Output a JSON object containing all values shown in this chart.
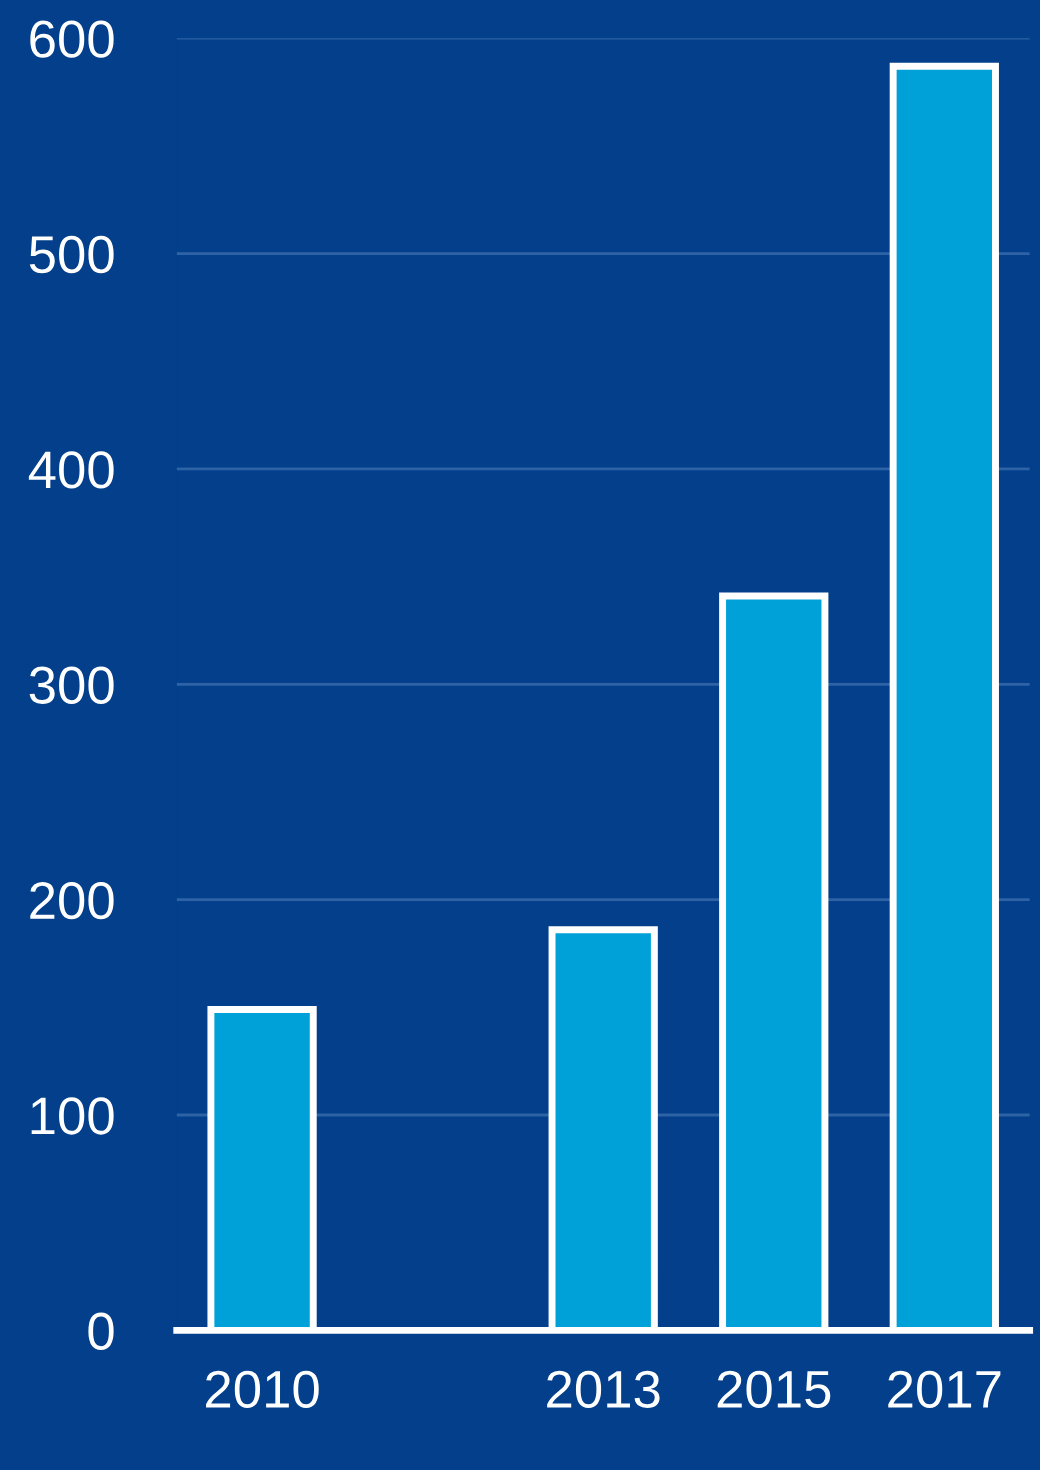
{
  "chart_data": {
    "type": "bar",
    "categories": [
      "2010",
      null,
      "2013",
      "2015",
      "2017"
    ],
    "values": [
      149,
      null,
      186,
      341,
      587
    ],
    "color": "#00a0d8",
    "ylim": [
      0,
      600
    ],
    "yticks": [
      0,
      100,
      200,
      300,
      400,
      500,
      600
    ],
    "grid": "y"
  }
}
